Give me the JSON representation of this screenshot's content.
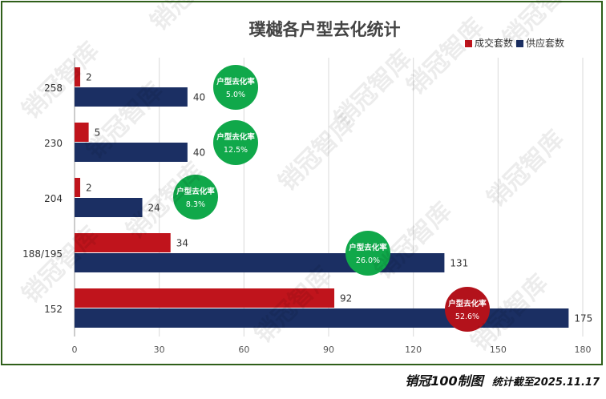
{
  "chart_data": {
    "type": "bar",
    "orientation": "horizontal",
    "title": "璞樾各户型去化统计",
    "categories": [
      "258",
      "230",
      "204",
      "188/195",
      "152"
    ],
    "series": [
      {
        "name": "成交套数",
        "color": "#c0141c",
        "values": [
          2,
          5,
          2,
          34,
          92
        ]
      },
      {
        "name": "供应套数",
        "color": "#1b2f63",
        "values": [
          40,
          40,
          24,
          131,
          175
        ]
      }
    ],
    "rate_label": "户型去化率",
    "rates": [
      "5.0%",
      "12.5%",
      "8.3%",
      "26.0%",
      "52.6%"
    ],
    "rate_colors": [
      "#10a84a",
      "#10a84a",
      "#10a84a",
      "#10a84a",
      "#b3121b"
    ],
    "xlim": [
      0,
      180
    ],
    "xticks": [
      0,
      30,
      60,
      90,
      120,
      150,
      180
    ],
    "grid": true,
    "legend_position": "top-right"
  },
  "footer": {
    "brand": "销冠100制图",
    "note": "统计截至2025.11.17"
  },
  "watermark": "销冠智库"
}
